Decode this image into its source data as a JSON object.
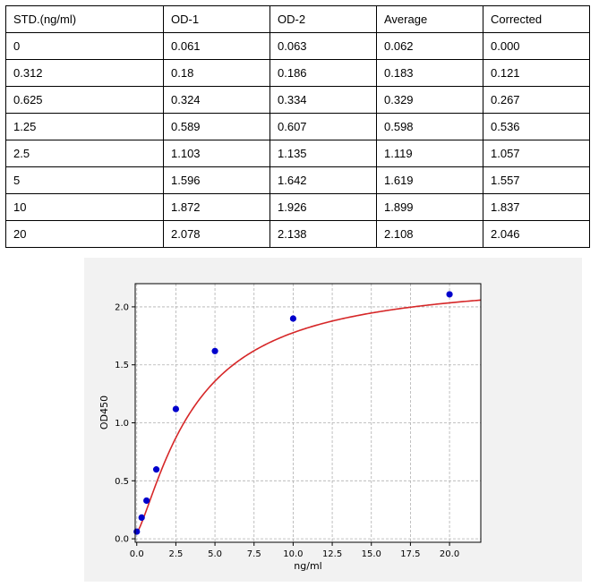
{
  "table": {
    "headers": [
      "STD.(ng/ml)",
      "OD-1",
      "OD-2",
      "Average",
      "Corrected"
    ],
    "rows": [
      [
        "0",
        "0.061",
        "0.063",
        "0.062",
        "0.000"
      ],
      [
        "0.312",
        "0.18",
        "0.186",
        "0.183",
        "0.121"
      ],
      [
        "0.625",
        "0.324",
        "0.334",
        "0.329",
        "0.267"
      ],
      [
        "1.25",
        "0.589",
        "0.607",
        "0.598",
        "0.536"
      ],
      [
        "2.5",
        "1.103",
        "1.135",
        "1.119",
        "1.057"
      ],
      [
        "5",
        "1.596",
        "1.642",
        "1.619",
        "1.557"
      ],
      [
        "10",
        "1.872",
        "1.926",
        "1.899",
        "1.837"
      ],
      [
        "20",
        "2.078",
        "2.138",
        "2.108",
        "2.046"
      ]
    ]
  },
  "chart_data": {
    "type": "scatter",
    "title": "",
    "xlabel": "ng/ml",
    "ylabel": "OD450",
    "xlim": [
      -0.1,
      22
    ],
    "ylim": [
      -0.03,
      2.2
    ],
    "xticks": [
      "0.0",
      "2.5",
      "5.0",
      "7.5",
      "10.0",
      "12.5",
      "15.0",
      "17.5",
      "20.0"
    ],
    "yticks": [
      "0.0",
      "0.5",
      "1.0",
      "1.5",
      "2.0"
    ],
    "grid": true,
    "points": {
      "x": [
        0,
        0.312,
        0.625,
        1.25,
        2.5,
        5,
        10,
        20
      ],
      "y": [
        0.062,
        0.183,
        0.329,
        0.598,
        1.119,
        1.619,
        1.899,
        2.108
      ],
      "color": "#0000cc"
    },
    "fit_curve": {
      "kind": "4PL",
      "a": 0.054,
      "b": 1.3,
      "c": 3.76,
      "d": 2.26,
      "x_range": [
        0,
        22
      ],
      "color": "#d62728"
    }
  }
}
